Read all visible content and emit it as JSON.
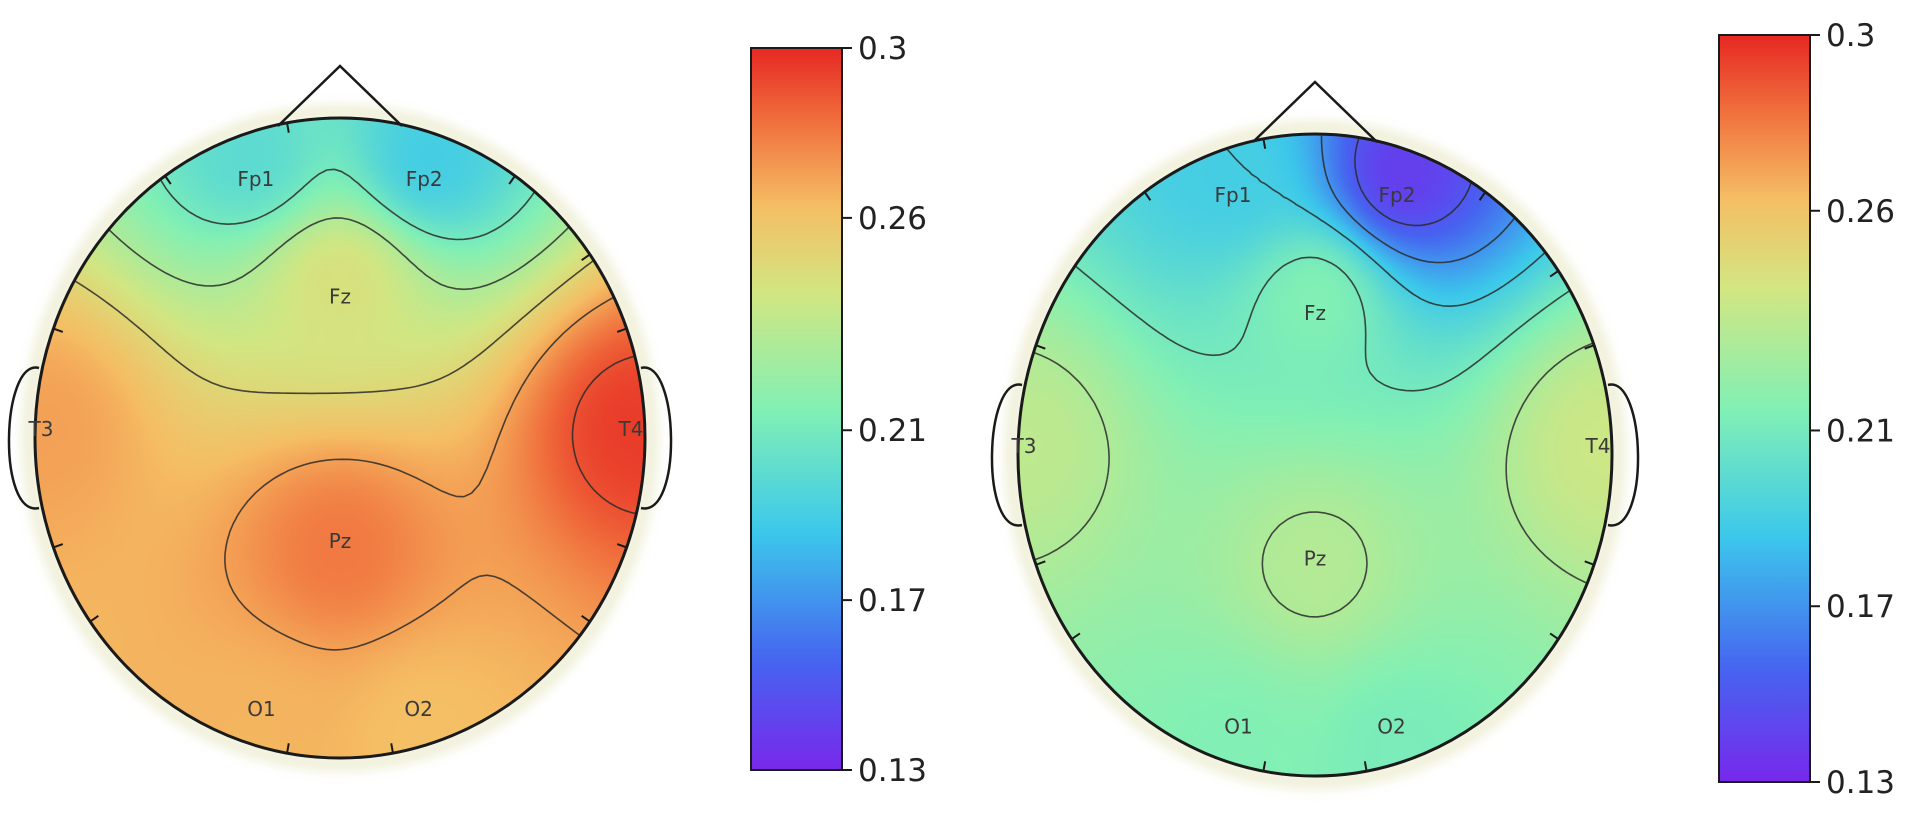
{
  "chart_data": [
    {
      "type": "heatmap",
      "title": "",
      "colorbar": {
        "min": 0.13,
        "max": 0.3,
        "ticks": [
          "0.3",
          "0.26",
          "0.21",
          "0.17",
          "0.13"
        ],
        "tick_values": [
          0.3,
          0.26,
          0.21,
          0.17,
          0.13
        ],
        "colormap": "rainbow"
      },
      "electrodes": [
        {
          "label": "Fp1",
          "value": 0.2
        },
        {
          "label": "Fp2",
          "value": 0.19
        },
        {
          "label": "Fz",
          "value": 0.245
        },
        {
          "label": "T3",
          "value": 0.27
        },
        {
          "label": "T4",
          "value": 0.295
        },
        {
          "label": "Pz",
          "value": 0.28
        },
        {
          "label": "O1",
          "value": 0.265
        },
        {
          "label": "O2",
          "value": 0.262
        }
      ]
    },
    {
      "type": "heatmap",
      "title": "",
      "colorbar": {
        "min": 0.13,
        "max": 0.3,
        "ticks": [
          "0.3",
          "0.26",
          "0.21",
          "0.17",
          "0.13"
        ],
        "tick_values": [
          0.3,
          0.26,
          0.21,
          0.17,
          0.13
        ],
        "colormap": "rainbow"
      },
      "electrodes": [
        {
          "label": "Fp1",
          "value": 0.19
        },
        {
          "label": "Fp2",
          "value": 0.14
        },
        {
          "label": "Fz",
          "value": 0.215
        },
        {
          "label": "T3",
          "value": 0.235
        },
        {
          "label": "T4",
          "value": 0.24
        },
        {
          "label": "Pz",
          "value": 0.232
        },
        {
          "label": "O1",
          "value": 0.215
        },
        {
          "label": "O2",
          "value": 0.212
        }
      ]
    }
  ]
}
